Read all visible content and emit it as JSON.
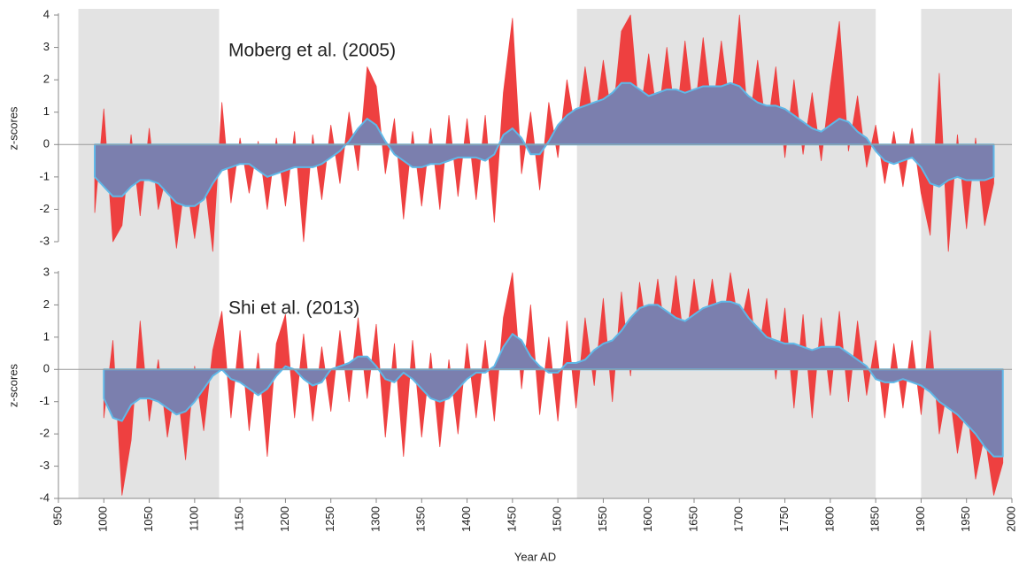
{
  "chart_data": [
    {
      "type": "area",
      "title": "Moberg et al. (2005)",
      "y_label": "z-scores",
      "xlim": [
        950,
        2000
      ],
      "ylim": [
        -3,
        4
      ],
      "yticks": [
        -3,
        -2,
        -1,
        0,
        1,
        2,
        3,
        4
      ],
      "shaded_spans": [
        [
          972,
          1127
        ],
        [
          1521,
          1850
        ],
        [
          1900,
          2000
        ]
      ],
      "shade_color": "#e3e3e3",
      "x": [
        990,
        1000,
        1010,
        1020,
        1030,
        1040,
        1050,
        1060,
        1070,
        1080,
        1090,
        1100,
        1110,
        1120,
        1130,
        1140,
        1150,
        1160,
        1170,
        1180,
        1190,
        1200,
        1210,
        1220,
        1230,
        1240,
        1250,
        1260,
        1270,
        1280,
        1290,
        1300,
        1310,
        1320,
        1330,
        1340,
        1350,
        1360,
        1370,
        1380,
        1390,
        1400,
        1410,
        1420,
        1430,
        1440,
        1450,
        1460,
        1470,
        1480,
        1490,
        1500,
        1510,
        1520,
        1530,
        1540,
        1550,
        1560,
        1570,
        1580,
        1590,
        1600,
        1610,
        1620,
        1630,
        1640,
        1650,
        1660,
        1670,
        1680,
        1690,
        1700,
        1710,
        1720,
        1730,
        1740,
        1750,
        1760,
        1770,
        1780,
        1790,
        1800,
        1810,
        1820,
        1830,
        1840,
        1850,
        1860,
        1870,
        1880,
        1890,
        1900,
        1910,
        1920,
        1930,
        1940,
        1950,
        1960,
        1970,
        1980
      ],
      "series": [
        {
          "color": "#ee4040",
          "values": [
            -2.1,
            1.1,
            -3.0,
            -2.5,
            0.3,
            -2.2,
            0.5,
            -2.0,
            -0.8,
            -3.2,
            -1.0,
            -2.9,
            -0.9,
            -3.3,
            1.3,
            -1.8,
            0.2,
            -1.5,
            0.1,
            -2.0,
            0.2,
            -1.9,
            0.4,
            -3.0,
            0.3,
            -1.7,
            0.6,
            -1.2,
            1.0,
            -0.8,
            2.4,
            1.8,
            -0.9,
            0.8,
            -2.3,
            0.4,
            -1.9,
            0.5,
            -2.0,
            0.9,
            -1.6,
            0.8,
            -1.7,
            0.9,
            -2.4,
            1.6,
            3.9,
            -0.9,
            1.0,
            -1.4,
            1.3,
            -0.4,
            2.0,
            0.3,
            2.4,
            0.5,
            2.6,
            0.7,
            3.5,
            4.0,
            0.8,
            2.8,
            0.7,
            3.0,
            0.6,
            3.2,
            0.8,
            3.3,
            0.9,
            3.2,
            1.0,
            4.0,
            0.5,
            2.6,
            0.3,
            2.4,
            -0.4,
            2.0,
            -0.3,
            1.6,
            -0.5,
            1.8,
            3.8,
            -0.2,
            1.5,
            -0.7,
            0.6,
            -1.2,
            0.4,
            -1.3,
            0.5,
            -1.5,
            -2.8,
            2.2,
            -3.3,
            0.3,
            -2.6,
            0.2,
            -2.5,
            -1.2
          ]
        },
        {
          "color": "#7b7fae",
          "edge_color": "#5fb8e8",
          "values": [
            -1.0,
            -1.3,
            -1.6,
            -1.6,
            -1.3,
            -1.1,
            -1.1,
            -1.2,
            -1.5,
            -1.8,
            -1.9,
            -1.9,
            -1.7,
            -1.2,
            -0.8,
            -0.7,
            -0.6,
            -0.6,
            -0.8,
            -1.0,
            -0.9,
            -0.8,
            -0.7,
            -0.7,
            -0.7,
            -0.6,
            -0.4,
            -0.2,
            0.1,
            0.5,
            0.8,
            0.6,
            0.1,
            -0.3,
            -0.5,
            -0.7,
            -0.7,
            -0.6,
            -0.6,
            -0.5,
            -0.4,
            -0.4,
            -0.4,
            -0.5,
            -0.3,
            0.3,
            0.5,
            0.2,
            -0.3,
            -0.3,
            0.1,
            0.6,
            0.9,
            1.1,
            1.2,
            1.3,
            1.4,
            1.6,
            1.9,
            1.9,
            1.7,
            1.5,
            1.6,
            1.7,
            1.7,
            1.6,
            1.7,
            1.8,
            1.8,
            1.8,
            1.9,
            1.8,
            1.5,
            1.3,
            1.2,
            1.2,
            1.1,
            0.9,
            0.7,
            0.5,
            0.4,
            0.6,
            0.8,
            0.7,
            0.4,
            0.2,
            -0.2,
            -0.5,
            -0.6,
            -0.5,
            -0.4,
            -0.7,
            -1.2,
            -1.3,
            -1.1,
            -1.0,
            -1.1,
            -1.1,
            -1.1,
            -1.0
          ]
        }
      ]
    },
    {
      "type": "area",
      "title": "Shi et al. (2013)",
      "y_label": "z-scores",
      "x_label": "Year AD",
      "xlim": [
        950,
        2000
      ],
      "ylim": [
        -4,
        3
      ],
      "yticks": [
        -4,
        -3,
        -2,
        -1,
        0,
        1,
        2,
        3
      ],
      "xticks": [
        950,
        1000,
        1050,
        1100,
        1150,
        1200,
        1250,
        1300,
        1350,
        1400,
        1450,
        1500,
        1550,
        1600,
        1650,
        1700,
        1750,
        1800,
        1850,
        1900,
        1950,
        2000
      ],
      "x": [
        1000,
        1010,
        1020,
        1030,
        1040,
        1050,
        1060,
        1070,
        1080,
        1090,
        1100,
        1110,
        1120,
        1130,
        1140,
        1150,
        1160,
        1170,
        1180,
        1190,
        1200,
        1210,
        1220,
        1230,
        1240,
        1250,
        1260,
        1270,
        1280,
        1290,
        1300,
        1310,
        1320,
        1330,
        1340,
        1350,
        1360,
        1370,
        1380,
        1390,
        1400,
        1410,
        1420,
        1430,
        1440,
        1450,
        1460,
        1470,
        1480,
        1490,
        1500,
        1510,
        1520,
        1530,
        1540,
        1550,
        1560,
        1570,
        1580,
        1590,
        1600,
        1610,
        1620,
        1630,
        1640,
        1650,
        1660,
        1670,
        1680,
        1690,
        1700,
        1710,
        1720,
        1730,
        1740,
        1750,
        1760,
        1770,
        1780,
        1790,
        1800,
        1810,
        1820,
        1830,
        1840,
        1850,
        1860,
        1870,
        1880,
        1890,
        1900,
        1910,
        1920,
        1930,
        1940,
        1950,
        1960,
        1970,
        1980,
        1990
      ],
      "series": [
        {
          "color": "#ee4040",
          "values": [
            -1.5,
            0.9,
            -3.9,
            -2.2,
            1.5,
            -1.6,
            0.3,
            -2.1,
            -0.3,
            -2.8,
            0.1,
            -1.9,
            0.6,
            1.8,
            -1.5,
            1.2,
            -1.9,
            0.5,
            -2.7,
            0.8,
            1.7,
            -1.5,
            1.1,
            -1.6,
            0.7,
            -1.3,
            1.2,
            -1.0,
            1.6,
            -0.9,
            1.4,
            -2.1,
            0.8,
            -2.7,
            0.9,
            -2.1,
            0.5,
            -2.4,
            0.3,
            -2.0,
            0.8,
            -1.5,
            0.9,
            -1.6,
            1.6,
            3.0,
            -0.6,
            2.0,
            -1.4,
            1.0,
            -1.6,
            1.5,
            -1.2,
            1.6,
            -0.5,
            2.2,
            -1.0,
            2.4,
            -0.2,
            2.7,
            0.8,
            2.8,
            0.7,
            2.9,
            0.6,
            2.8,
            0.9,
            2.8,
            1.0,
            3.0,
            1.2,
            2.5,
            0.3,
            2.2,
            -0.3,
            1.9,
            -1.2,
            1.7,
            -1.5,
            1.6,
            -0.8,
            1.8,
            -1.0,
            1.5,
            -0.8,
            0.9,
            -1.5,
            0.8,
            -1.2,
            0.9,
            -1.4,
            1.2,
            -2.0,
            -0.4,
            -2.6,
            -1.0,
            -3.4,
            -2.0,
            -3.9,
            -2.9
          ]
        },
        {
          "color": "#7b7fae",
          "edge_color": "#5fb8e8",
          "values": [
            -0.9,
            -1.5,
            -1.6,
            -1.1,
            -0.9,
            -0.9,
            -1.0,
            -1.2,
            -1.4,
            -1.3,
            -1.0,
            -0.6,
            -0.2,
            0.0,
            -0.3,
            -0.4,
            -0.6,
            -0.8,
            -0.6,
            -0.2,
            0.1,
            0.0,
            -0.3,
            -0.5,
            -0.4,
            0.0,
            0.1,
            0.2,
            0.4,
            0.4,
            0.1,
            -0.3,
            -0.4,
            -0.1,
            -0.3,
            -0.6,
            -0.9,
            -1.0,
            -0.9,
            -0.6,
            -0.3,
            -0.1,
            -0.1,
            0.1,
            0.7,
            1.1,
            0.9,
            0.4,
            0.1,
            -0.1,
            -0.1,
            0.2,
            0.2,
            0.3,
            0.6,
            0.8,
            0.9,
            1.2,
            1.6,
            1.9,
            2.0,
            2.0,
            1.8,
            1.6,
            1.5,
            1.7,
            1.9,
            2.0,
            2.1,
            2.1,
            2.0,
            1.6,
            1.3,
            1.0,
            0.9,
            0.8,
            0.8,
            0.7,
            0.6,
            0.7,
            0.7,
            0.7,
            0.5,
            0.3,
            0.1,
            -0.3,
            -0.4,
            -0.4,
            -0.3,
            -0.4,
            -0.5,
            -0.7,
            -1.0,
            -1.2,
            -1.4,
            -1.7,
            -2.0,
            -2.4,
            -2.7,
            -2.7
          ]
        }
      ]
    }
  ]
}
